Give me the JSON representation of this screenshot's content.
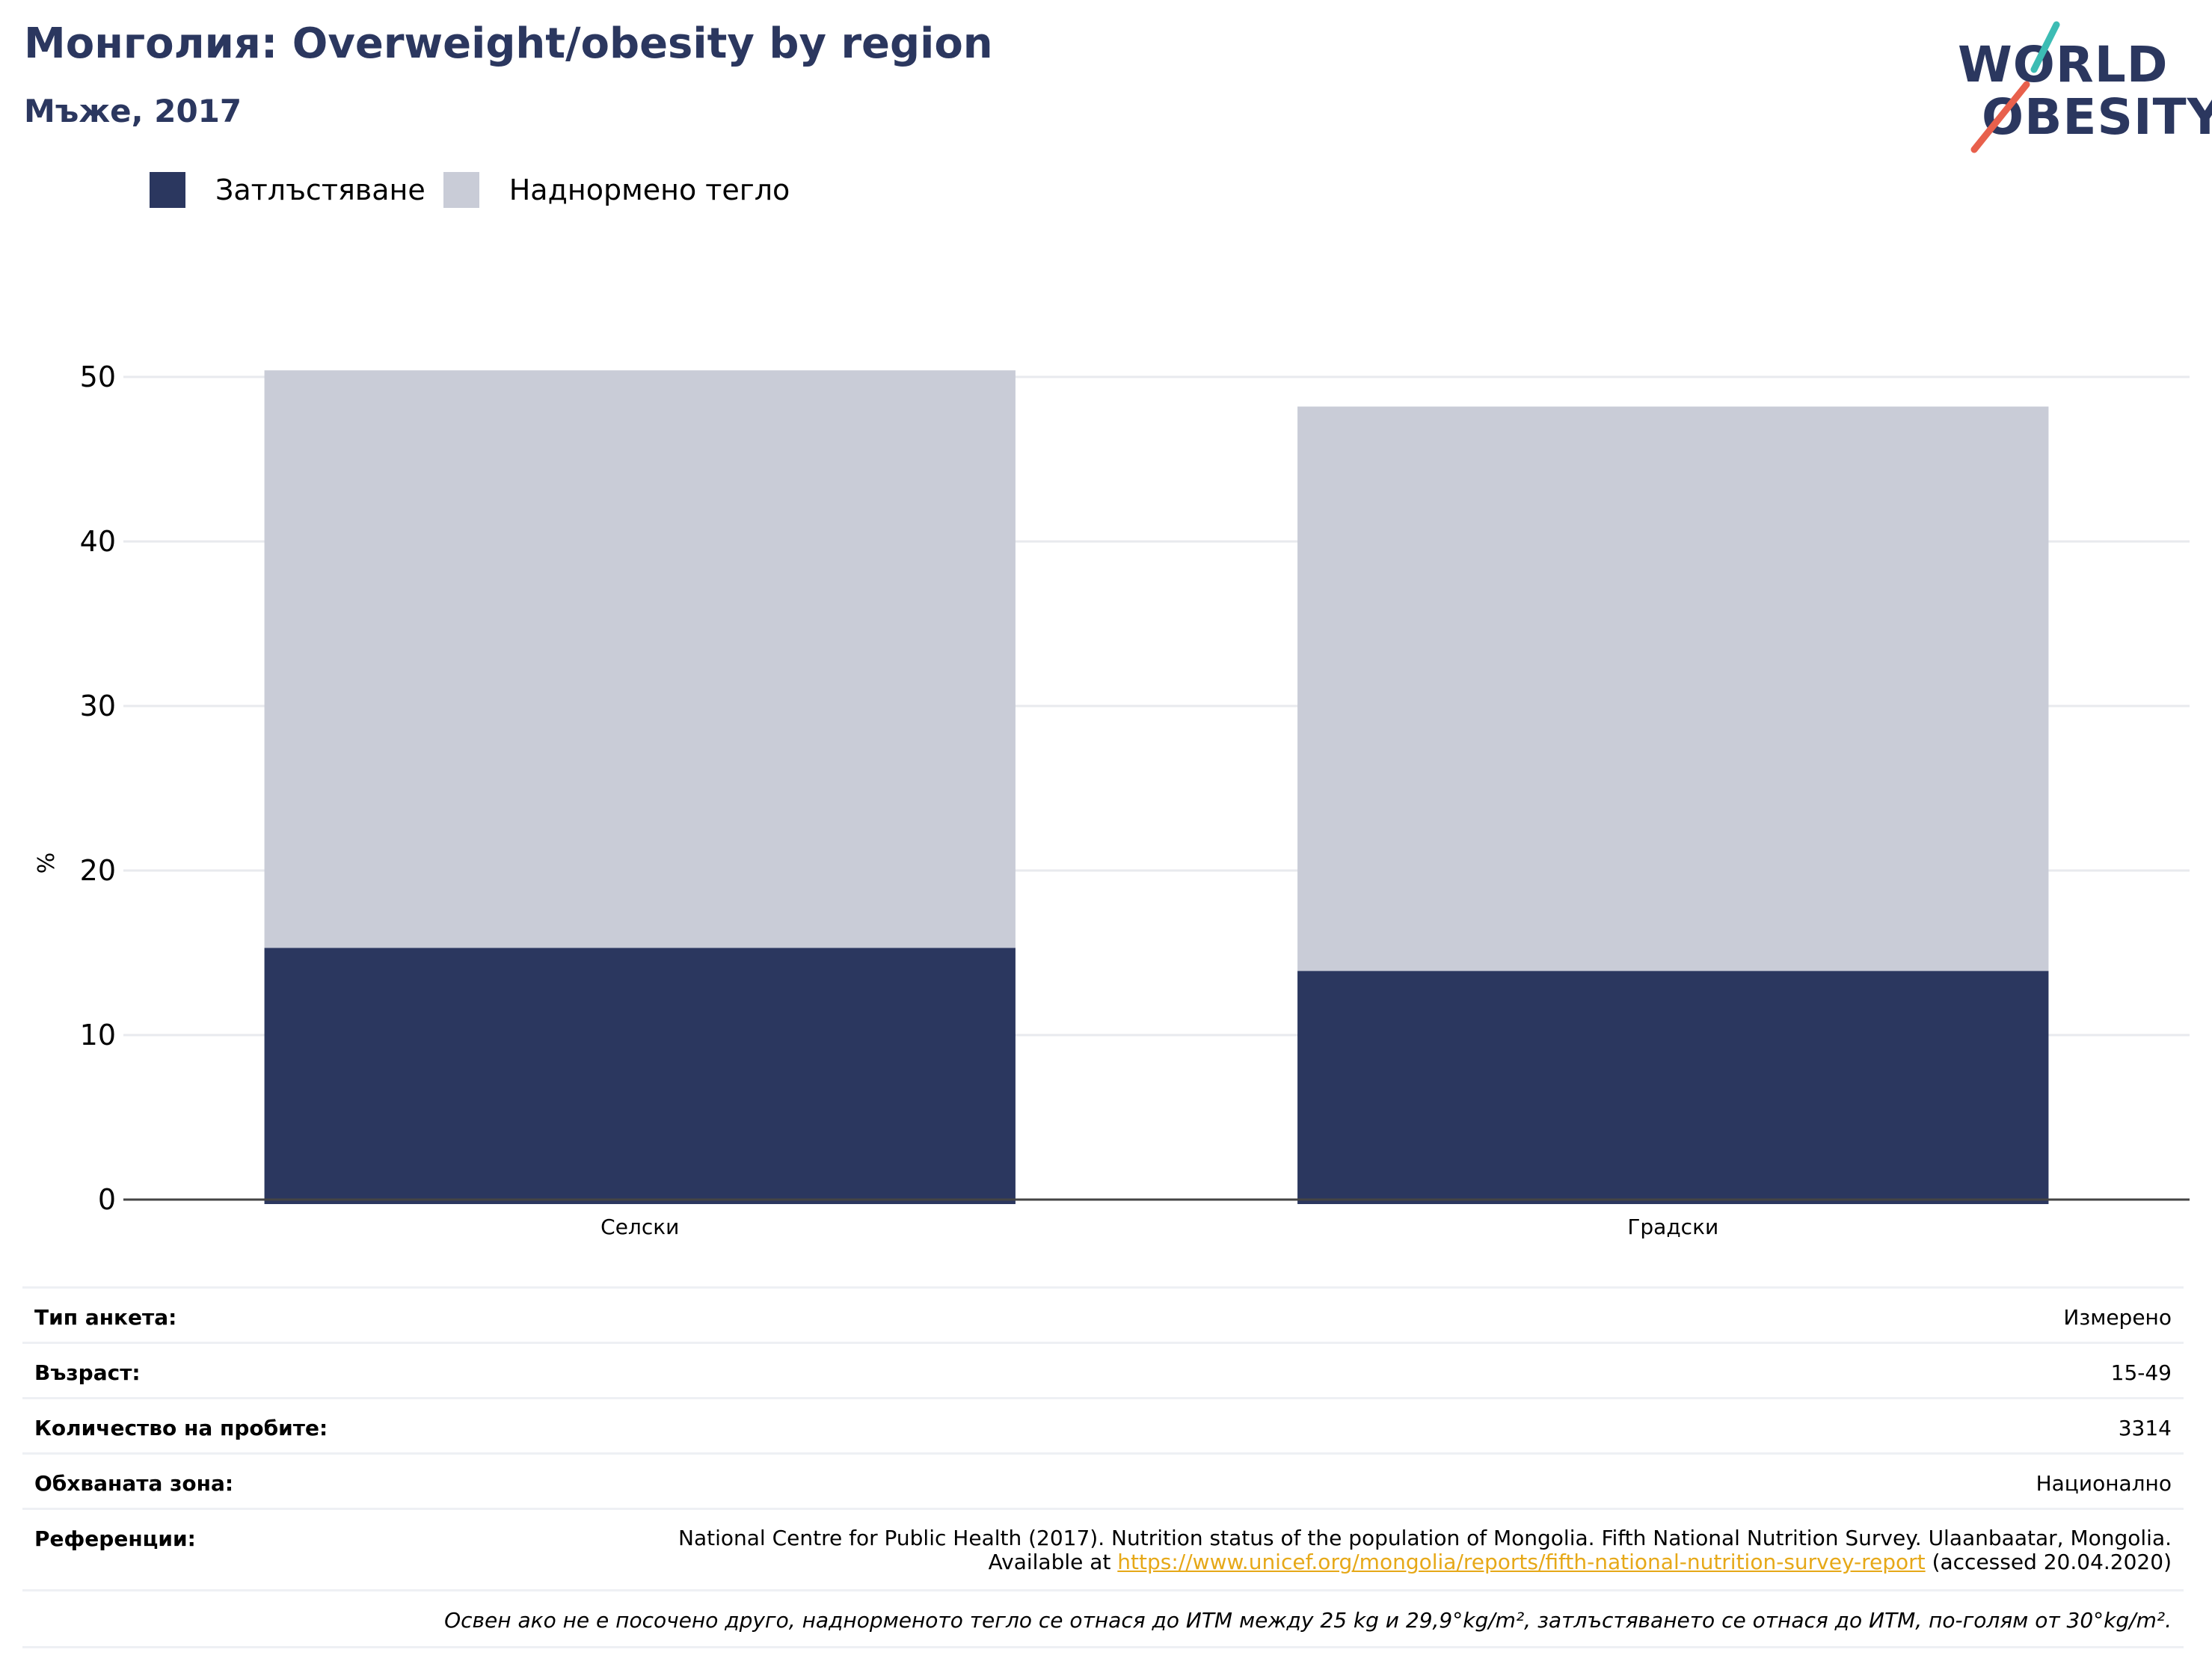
{
  "header": {
    "title": "Монголия: Overweight/obesity by region",
    "subtitle": "Мъже, 2017"
  },
  "logo": {
    "line1": "WORLD",
    "line2": "OBESITY",
    "accent_teal": "#3cbcb4",
    "accent_red": "#e8604c"
  },
  "legend": [
    {
      "label": "Затлъстяване",
      "color": "#2b375f"
    },
    {
      "label": "Наднормено тегло",
      "color": "#c9ccd7"
    }
  ],
  "chart_data": {
    "type": "bar",
    "stacked": true,
    "categories": [
      "Селски",
      "Градски"
    ],
    "series": [
      {
        "name": "Затлъстяване",
        "values": [
          15.3,
          13.9
        ],
        "color": "#2b375f"
      },
      {
        "name": "Наднормено тегло",
        "values": [
          35.1,
          34.3
        ],
        "color": "#c9ccd7"
      }
    ],
    "ylabel": "%",
    "ylim": [
      0,
      50
    ],
    "yticks": [
      0,
      10,
      20,
      30,
      40,
      50
    ],
    "grid": true
  },
  "info": {
    "survey_type": {
      "label": "Тип анкета:",
      "value": "Измерено"
    },
    "age": {
      "label": "Възраст:",
      "value": "15-49"
    },
    "sample": {
      "label": "Количество на пробите:",
      "value": "3314"
    },
    "coverage": {
      "label": "Обхваната зона:",
      "value": "Национално"
    },
    "references": {
      "label": "Референции:",
      "text_before": "National Centre for Public Health (2017). Nutrition status of the population of Mongolia. Fifth National Nutrition Survey. Ulaanbaatar, Mongolia. Available at ",
      "link": "https://www.unicef.org/mongolia/reports/fifth-national-nutrition-survey-report",
      "text_after": " (accessed 20.04.2020)"
    },
    "note": "Освен ако не е посочено друго, наднорменото тегло се отнася до ИТМ между 25 kg и 29,9°kg/m², затлъстяването се отнася до ИТМ, по-голям от 30°kg/m²."
  }
}
